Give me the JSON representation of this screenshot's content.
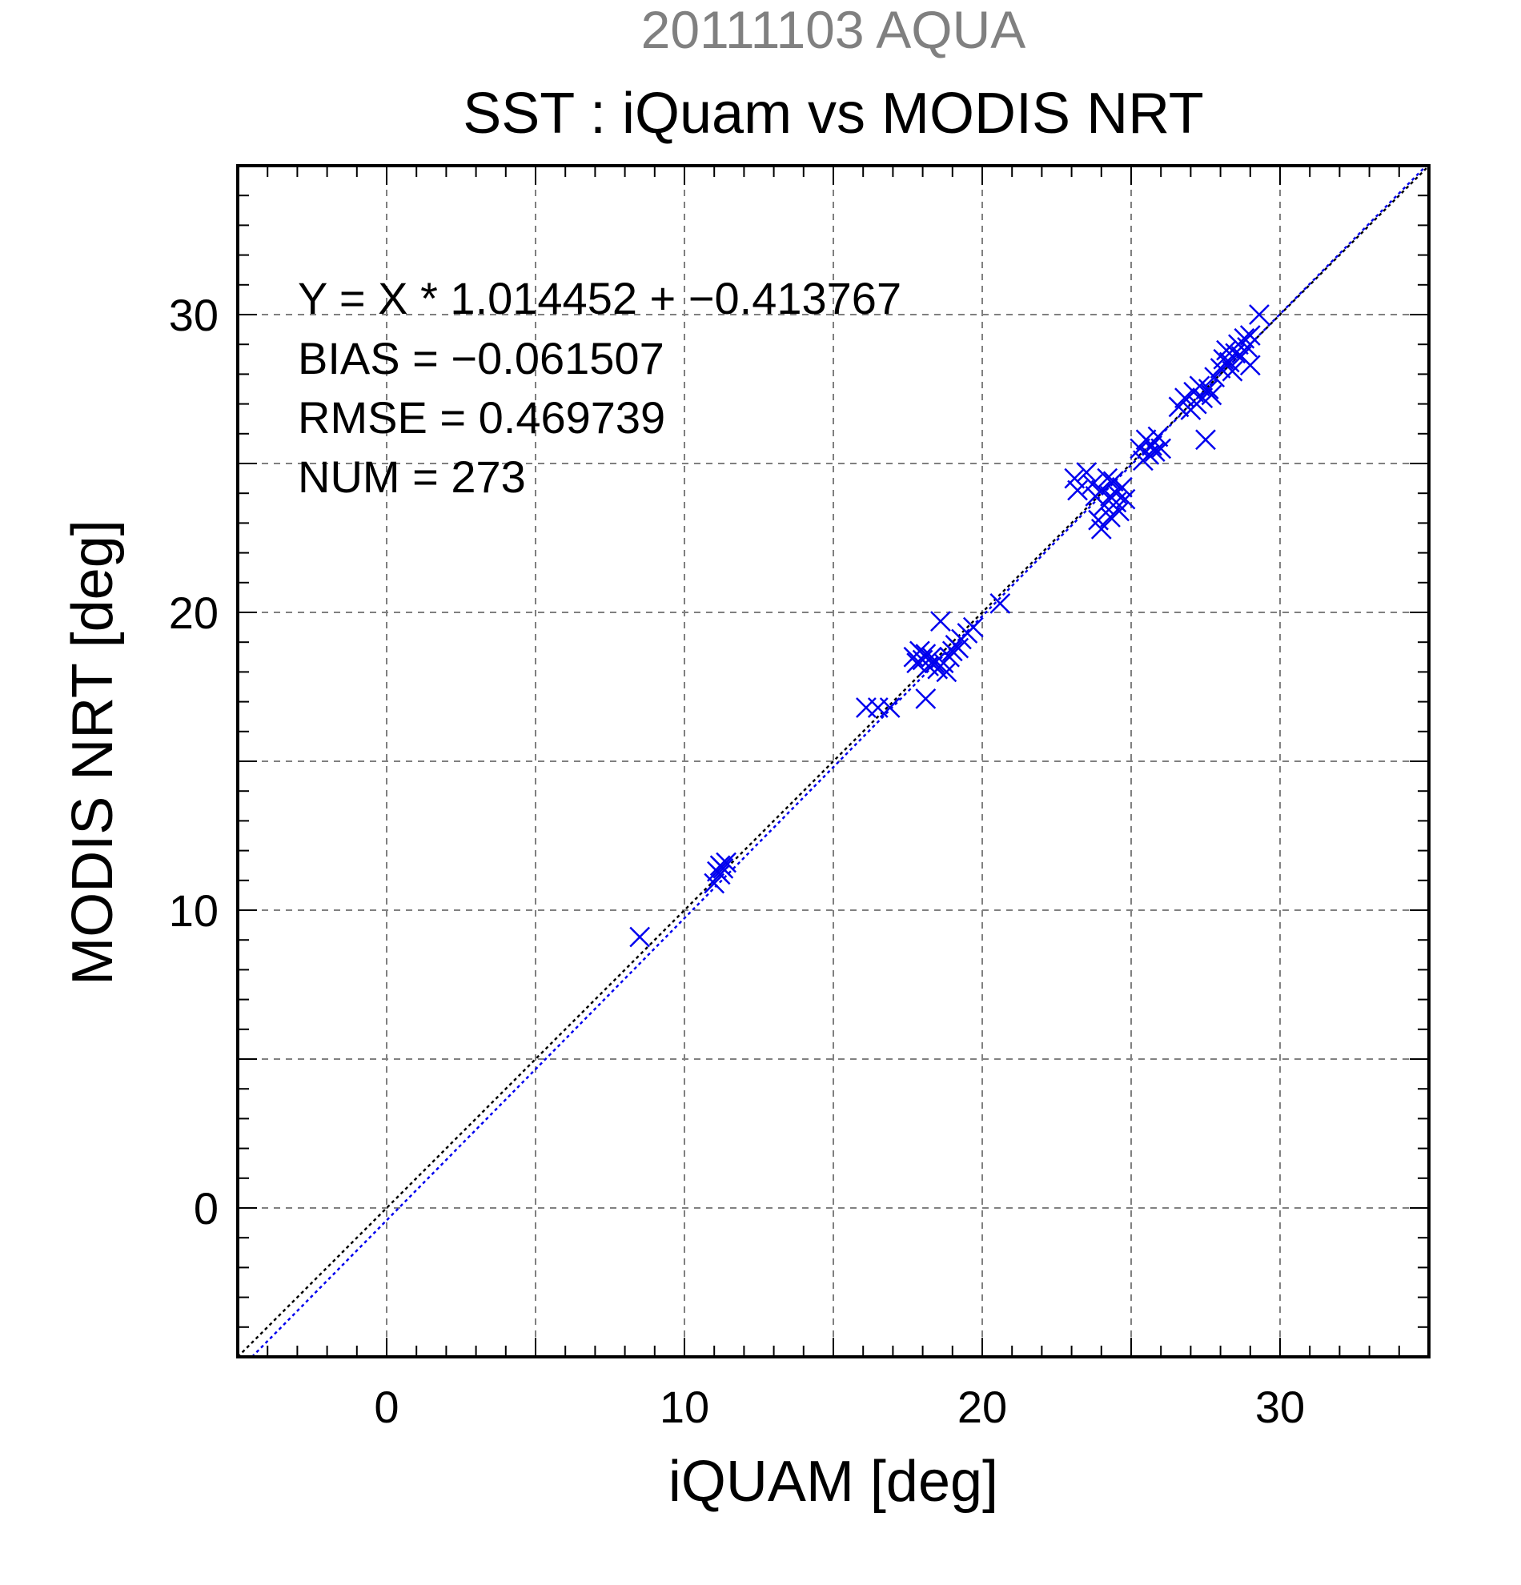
{
  "chart_data": {
    "type": "scatter",
    "suptitle": "20111103 AQUA",
    "title": "SST : iQuam vs MODIS NRT",
    "xlabel": "iQUAM [deg]",
    "ylabel": "MODIS NRT [deg]",
    "xlim": [
      -5,
      35
    ],
    "ylim": [
      -5,
      35
    ],
    "xticks": [
      0,
      10,
      20,
      30
    ],
    "yticks": [
      0,
      10,
      20,
      30
    ],
    "grid": true,
    "stats": [
      "Y = X * 1.014452 + −0.413767",
      "BIAS = −0.061507",
      "RMSE = 0.469739",
      "NUM = 273"
    ],
    "lines": [
      {
        "kind": "one-to-one",
        "slope": 1.0,
        "intercept": 0.0,
        "color": "#000000",
        "style": "dotted"
      },
      {
        "kind": "regression",
        "slope": 1.014452,
        "intercept": -0.413767,
        "color": "#0000ee",
        "style": "dotted"
      }
    ],
    "series": [
      {
        "marker": "x",
        "color": "#0000ee",
        "points": [
          [
            8.5,
            9.1
          ],
          [
            11.0,
            10.9
          ],
          [
            11.1,
            11.3
          ],
          [
            11.2,
            11.5
          ],
          [
            11.3,
            11.4
          ],
          [
            11.4,
            11.6
          ],
          [
            11.2,
            11.2
          ],
          [
            16.1,
            16.8
          ],
          [
            16.5,
            16.8
          ],
          [
            16.9,
            16.8
          ],
          [
            17.7,
            18.5
          ],
          [
            17.8,
            18.3
          ],
          [
            17.9,
            18.7
          ],
          [
            18.0,
            18.4
          ],
          [
            18.1,
            18.6
          ],
          [
            18.1,
            17.1
          ],
          [
            18.2,
            18.2
          ],
          [
            18.3,
            18.5
          ],
          [
            18.4,
            18.3
          ],
          [
            18.5,
            18.1
          ],
          [
            18.6,
            19.7
          ],
          [
            18.7,
            18.3
          ],
          [
            18.8,
            18.0
          ],
          [
            18.9,
            18.5
          ],
          [
            19.0,
            18.7
          ],
          [
            19.1,
            18.9
          ],
          [
            19.2,
            18.8
          ],
          [
            19.3,
            19.1
          ],
          [
            19.5,
            19.3
          ],
          [
            19.7,
            19.5
          ],
          [
            20.6,
            20.3
          ],
          [
            23.1,
            24.5
          ],
          [
            23.2,
            24.1
          ],
          [
            23.5,
            24.7
          ],
          [
            23.7,
            24.3
          ],
          [
            23.8,
            23.9
          ],
          [
            23.9,
            23.1
          ],
          [
            24.0,
            22.8
          ],
          [
            24.0,
            24.1
          ],
          [
            24.1,
            23.6
          ],
          [
            24.2,
            24.5
          ],
          [
            24.3,
            23.9
          ],
          [
            24.3,
            23.2
          ],
          [
            24.4,
            24.4
          ],
          [
            24.5,
            23.7
          ],
          [
            24.5,
            24.0
          ],
          [
            24.6,
            23.4
          ],
          [
            24.7,
            24.2
          ],
          [
            24.8,
            23.8
          ],
          [
            25.3,
            25.5
          ],
          [
            25.4,
            25.1
          ],
          [
            25.5,
            25.8
          ],
          [
            25.6,
            25.3
          ],
          [
            25.7,
            25.6
          ],
          [
            25.8,
            25.4
          ],
          [
            25.9,
            25.9
          ],
          [
            26.0,
            25.5
          ],
          [
            26.6,
            26.9
          ],
          [
            26.8,
            27.2
          ],
          [
            27.0,
            26.8
          ],
          [
            27.1,
            27.4
          ],
          [
            27.2,
            27.0
          ],
          [
            27.3,
            27.6
          ],
          [
            27.4,
            27.2
          ],
          [
            27.5,
            25.8
          ],
          [
            27.6,
            27.5
          ],
          [
            27.7,
            27.3
          ],
          [
            27.8,
            27.9
          ],
          [
            28.0,
            28.2
          ],
          [
            28.1,
            28.5
          ],
          [
            28.2,
            28.8
          ],
          [
            28.3,
            28.4
          ],
          [
            28.4,
            28.1
          ],
          [
            28.5,
            28.7
          ],
          [
            28.6,
            29.0
          ],
          [
            28.7,
            28.6
          ],
          [
            28.8,
            29.2
          ],
          [
            28.9,
            28.9
          ],
          [
            29.0,
            29.3
          ],
          [
            29.0,
            28.3
          ],
          [
            29.3,
            30.0
          ]
        ]
      }
    ]
  }
}
